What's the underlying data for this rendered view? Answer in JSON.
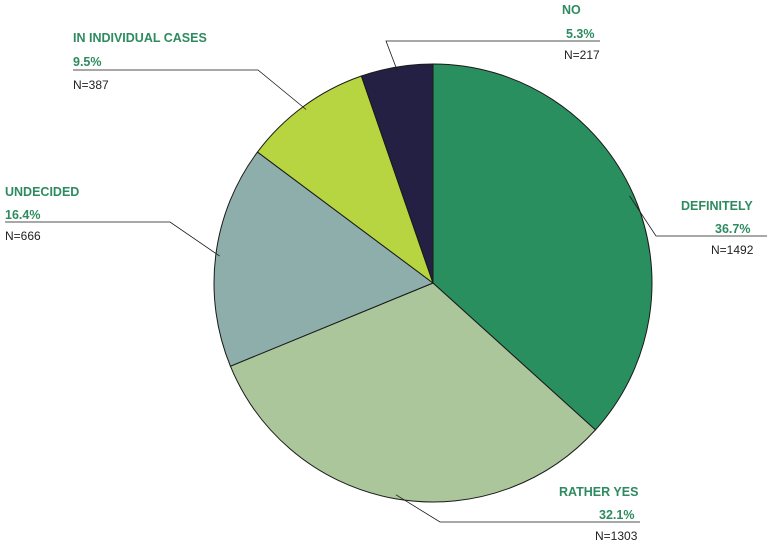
{
  "chart_data": {
    "type": "pie",
    "title": "",
    "slices": [
      {
        "label": "DEFINITELY",
        "percent_text": "36.7%",
        "value": 36.7,
        "n_text": "N=1492",
        "n": 1492,
        "color": "#2a8f5f"
      },
      {
        "label": "RATHER YES",
        "percent_text": "32.1%",
        "value": 32.1,
        "n_text": "N=1303",
        "n": 1303,
        "color": "#abc69a"
      },
      {
        "label": "UNDECIDED",
        "percent_text": "16.4%",
        "value": 16.4,
        "n_text": "N=666",
        "n": 666,
        "color": "#8daeaa"
      },
      {
        "label": "IN INDIVIDUAL CASES",
        "percent_text": "9.5%",
        "value": 9.5,
        "n_text": "N=387",
        "n": 387,
        "color": "#b6d540"
      },
      {
        "label": "NO",
        "percent_text": "5.3%",
        "value": 5.3,
        "n_text": "N=217",
        "n": 217,
        "color": "#242043"
      }
    ],
    "start_angle": "12 o'clock",
    "direction": "clockwise",
    "legend": "none"
  }
}
